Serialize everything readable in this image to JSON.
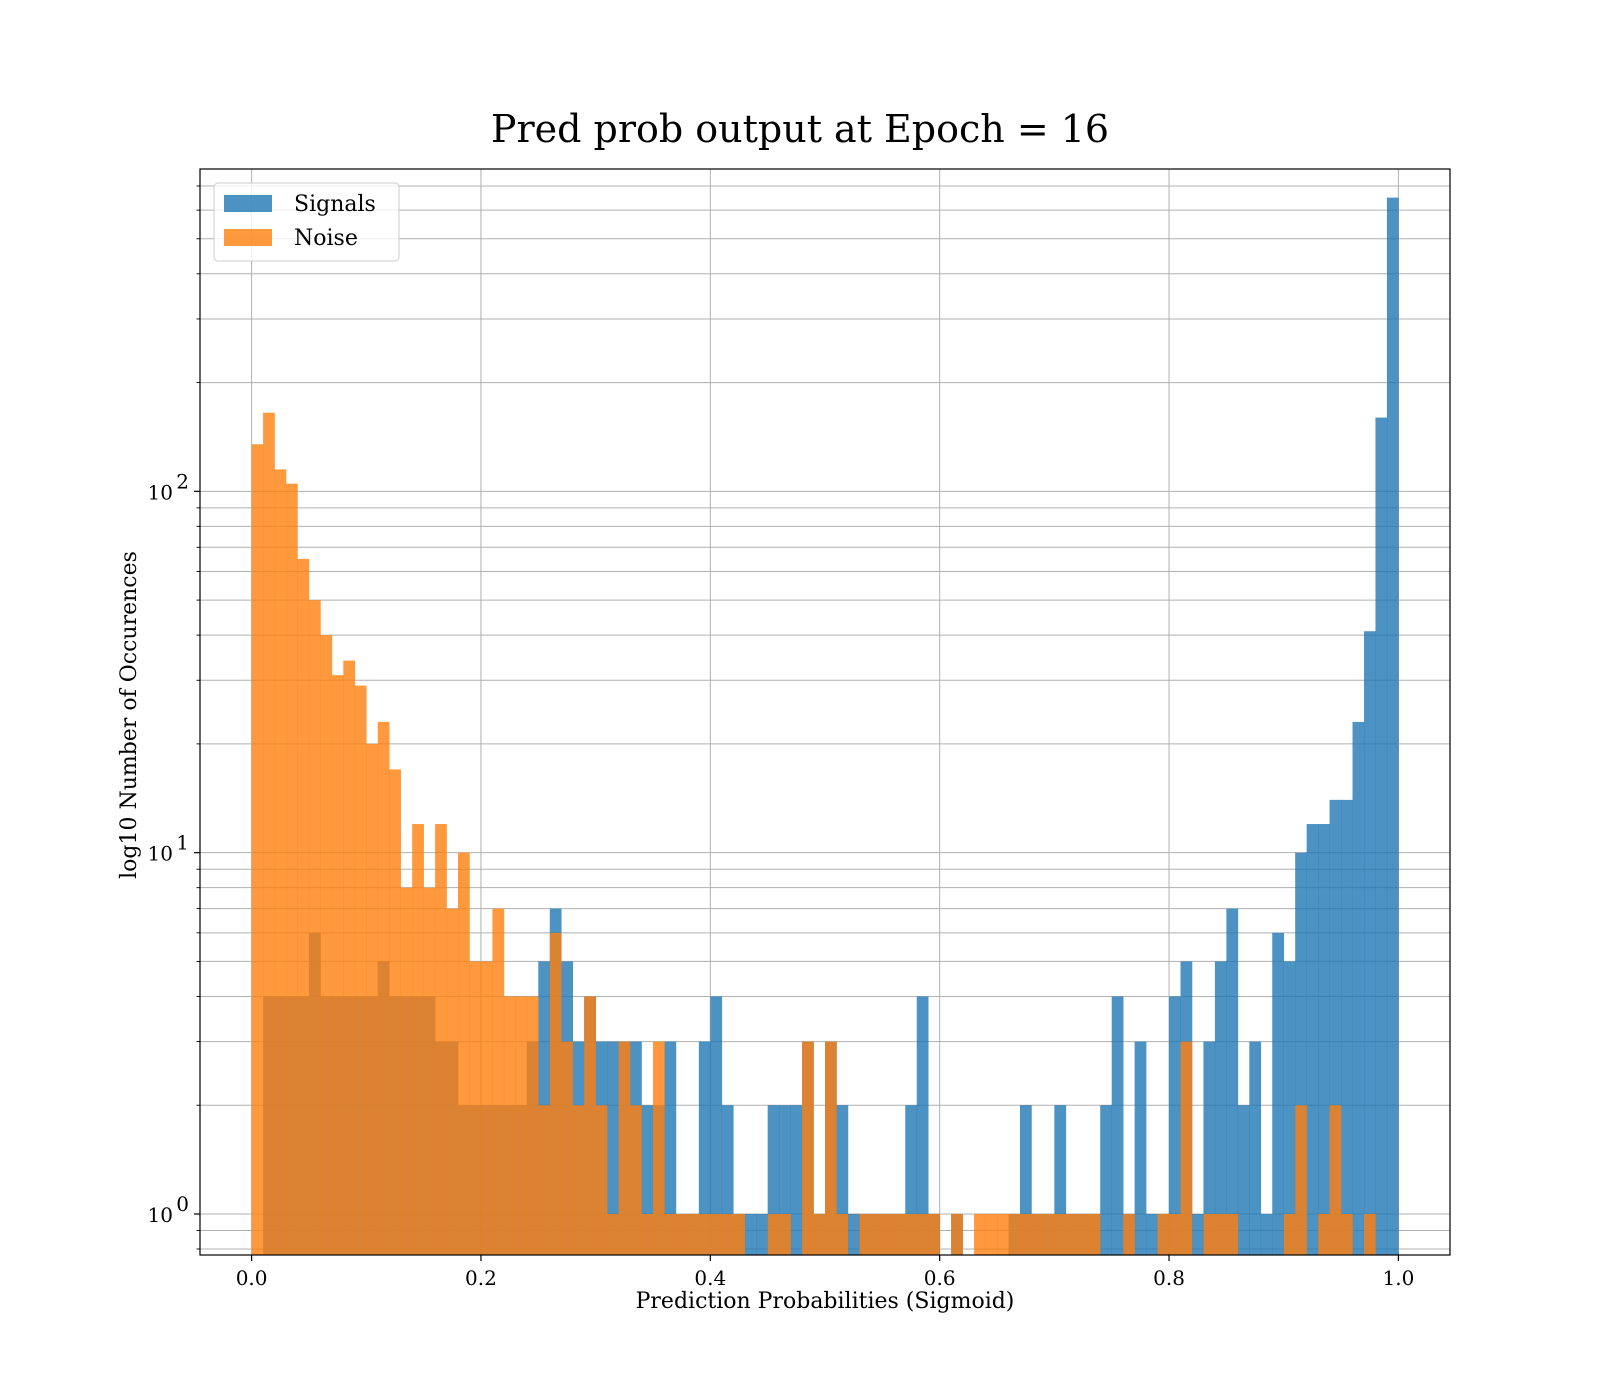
{
  "chart_data": {
    "type": "bar",
    "title": "Pred prob output at Epoch = 16",
    "xlabel": "Prediction Probabilities (Sigmoid)",
    "ylabel": "log10 Number of Occurences",
    "y_scale": "log",
    "xlim": [
      -0.045,
      1.045
    ],
    "ylim": [
      0.77,
      780
    ],
    "grid": true,
    "legend_position": "top-left",
    "x_ticks": [
      "0.0",
      "0.2",
      "0.4",
      "0.6",
      "0.8",
      "1.0"
    ],
    "x_tick_values": [
      0.0,
      0.2,
      0.4,
      0.6,
      0.8,
      1.0
    ],
    "y_ticks": [
      "10^0",
      "10^1",
      "10^2"
    ],
    "y_tick_values": [
      1,
      10,
      100
    ],
    "bin_width": 0.01,
    "series": [
      {
        "name": "Signals",
        "color": "#1f77b4",
        "opacity": 0.8,
        "values": [
          0,
          4,
          4,
          4,
          4,
          6,
          4,
          4,
          4,
          4,
          4,
          5,
          4,
          4,
          4,
          4,
          3,
          3,
          2,
          2,
          2,
          2,
          2,
          2,
          3,
          5,
          7,
          5,
          3,
          4,
          3,
          3,
          3,
          3,
          2,
          2,
          3,
          1,
          1,
          3,
          4,
          2,
          1,
          1,
          1,
          2,
          2,
          2,
          3,
          1,
          3,
          2,
          1,
          1,
          1,
          1,
          1,
          2,
          4,
          1,
          0,
          1,
          0,
          0,
          0,
          0,
          1,
          2,
          1,
          1,
          2,
          1,
          1,
          1,
          2,
          4,
          1,
          3,
          1,
          1,
          4,
          5,
          1,
          3,
          5,
          7,
          2,
          3,
          1,
          6,
          5,
          10,
          12,
          12,
          14,
          14,
          23,
          41,
          160,
          650
        ]
      },
      {
        "name": "Noise",
        "color": "#ff7f0e",
        "opacity": 0.8,
        "values": [
          135,
          165,
          115,
          105,
          65,
          50,
          40,
          31,
          34,
          29,
          20,
          23,
          17,
          8,
          12,
          8,
          12,
          7,
          10,
          5,
          5,
          7,
          4,
          4,
          4,
          2,
          6,
          3,
          2,
          4,
          2,
          1,
          3,
          2,
          1,
          3,
          1,
          1,
          1,
          1,
          1,
          1,
          1,
          0,
          0,
          1,
          1,
          0,
          3,
          1,
          3,
          1,
          0,
          1,
          1,
          1,
          1,
          1,
          1,
          1,
          0,
          1,
          0,
          1,
          1,
          1,
          1,
          1,
          1,
          1,
          1,
          1,
          1,
          1,
          0,
          0,
          1,
          0,
          0,
          1,
          1,
          3,
          0,
          1,
          1,
          1,
          0,
          0,
          0,
          0,
          1,
          2,
          0,
          1,
          2,
          1,
          0,
          1,
          0,
          0
        ]
      }
    ]
  }
}
